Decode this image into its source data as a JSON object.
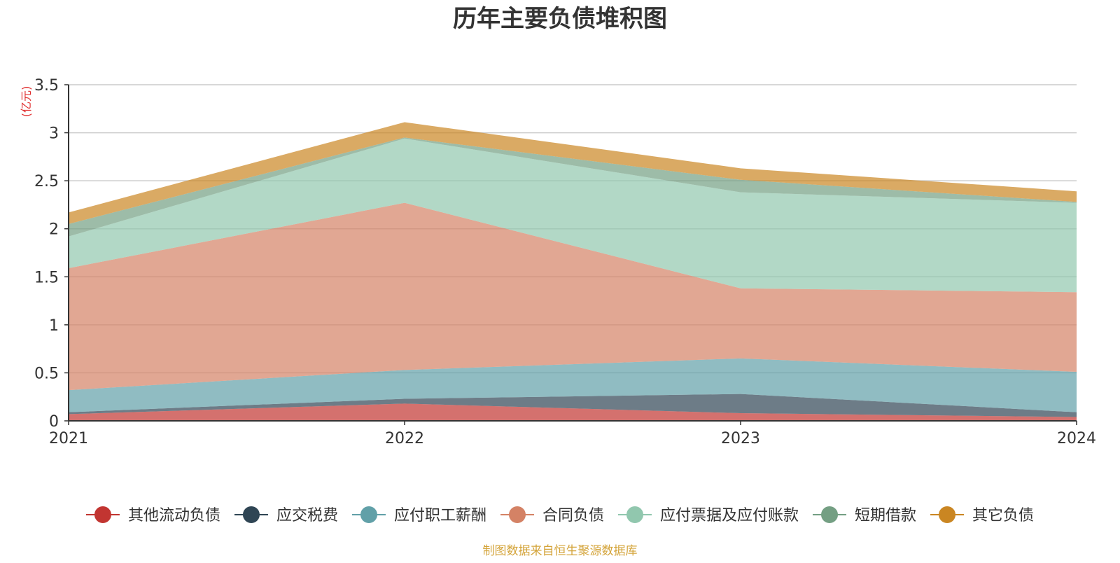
{
  "chart_data": {
    "type": "area",
    "stacked": true,
    "title": "历年主要负债堆积图",
    "ylabel": "(亿元)",
    "x": [
      "2021",
      "2022",
      "2023",
      "2024"
    ],
    "ylim": [
      0,
      3.5
    ],
    "yticks": [
      "0",
      "0.5",
      "1",
      "1.5",
      "2",
      "2.5",
      "3",
      "3.5"
    ],
    "grid": true,
    "legend_position": "bottom",
    "series": [
      {
        "name": "其他流动负债",
        "color": "#c23531",
        "values": [
          0.07,
          0.18,
          0.08,
          0.04
        ]
      },
      {
        "name": "应交税费",
        "color": "#2f4554",
        "values": [
          0.02,
          0.05,
          0.2,
          0.05
        ]
      },
      {
        "name": "应付职工薪酬",
        "color": "#61a0a8",
        "values": [
          0.23,
          0.3,
          0.37,
          0.42
        ]
      },
      {
        "name": "合同负债",
        "color": "#d48265",
        "values": [
          1.27,
          1.74,
          0.73,
          0.83
        ]
      },
      {
        "name": "应付票据及应付账款",
        "color": "#91c7ae",
        "values": [
          0.33,
          0.67,
          1.0,
          0.93
        ]
      },
      {
        "name": "短期借款",
        "color": "#749f83",
        "values": [
          0.13,
          0.01,
          0.13,
          0.01
        ]
      },
      {
        "name": "其它负债",
        "color": "#ca8622",
        "values": [
          0.12,
          0.16,
          0.12,
          0.11
        ]
      }
    ],
    "source_note": "制图数据来自恒生聚源数据库"
  }
}
